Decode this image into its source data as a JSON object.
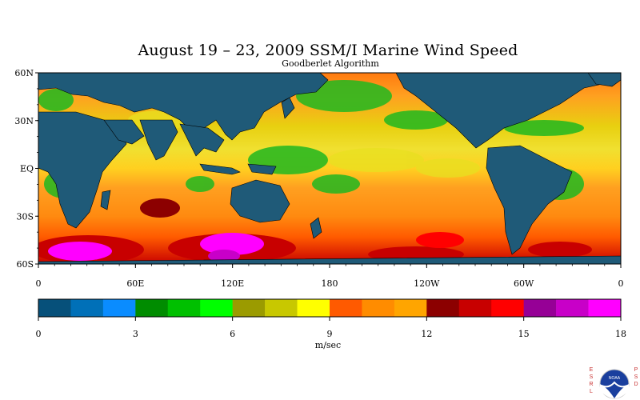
{
  "title": "August 19 – 23, 2009 SSM/I Marine Wind Speed",
  "subtitle": "Goodberlet Algorithm",
  "lat_labels": [
    "60N",
    "30N",
    "EQ",
    "30S",
    "60S"
  ],
  "lon_labels": [
    "0",
    "60E",
    "120E",
    "180",
    "120W",
    "60W",
    "0"
  ],
  "colorbar": {
    "ticks": [
      "0",
      "3",
      "6",
      "9",
      "12",
      "15",
      "18"
    ],
    "units": "m/sec",
    "colors": [
      "#06507a",
      "#0070b8",
      "#0a8cff",
      "#008c00",
      "#00c000",
      "#00ff00",
      "#9b9b00",
      "#c8c800",
      "#ffff00",
      "#ff5a00",
      "#ff8c00",
      "#ffa500",
      "#8c0000",
      "#c80000",
      "#ff0000",
      "#960096",
      "#c800c8",
      "#ff00ff"
    ]
  },
  "logo": {
    "left_letters": "ESRL",
    "right_letters": "PSD",
    "center_text": "NOAA"
  },
  "colors": {
    "land": "#1f5a78",
    "ocean_base": "#ff9c1a"
  }
}
